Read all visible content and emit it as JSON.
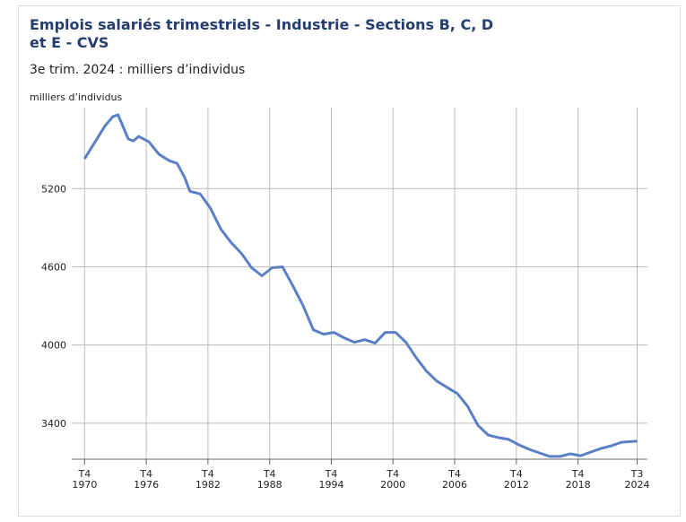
{
  "chart_data": {
    "type": "line",
    "title": "Emplois salariés trimestriels - Industrie - Sections B, C, D et E - CVS",
    "subtitle": "3e trim. 2024 : milliers d’individus",
    "y_label": "milliers d’individus",
    "x": [
      1970.75,
      1971.5,
      1972.75,
      1973.5,
      1974,
      1975,
      1975.5,
      1976,
      1977,
      1978,
      1979,
      1979.75,
      1980.5,
      1981,
      1982,
      1983,
      1984,
      1985,
      1986,
      1987,
      1988,
      1989,
      1990,
      1991,
      1992,
      1993,
      1994,
      1995,
      1996,
      1997,
      1998,
      1999,
      2000,
      2001,
      2002,
      2003,
      2004,
      2005,
      2006,
      2007,
      2008,
      2009,
      2010,
      2011,
      2012,
      2013,
      2014,
      2015,
      2016,
      2017,
      2018,
      2019,
      2020,
      2021,
      2022,
      2023,
      2024.5
    ],
    "series": [
      {
        "name": "Emplois",
        "color": "#5b7fc7",
        "values": [
          5428,
          5524,
          5683,
          5752,
          5766,
          5580,
          5566,
          5600,
          5559,
          5462,
          5414,
          5393,
          5283,
          5179,
          5159,
          5048,
          4890,
          4786,
          4703,
          4593,
          4531,
          4593,
          4600,
          4455,
          4303,
          4117,
          4083,
          4097,
          4055,
          4021,
          4041,
          4014,
          4097,
          4097,
          4021,
          3903,
          3800,
          3724,
          3676,
          3628,
          3531,
          3386,
          3310,
          3290,
          3276,
          3234,
          3200,
          3172,
          3145,
          3145,
          3165,
          3151,
          3179,
          3207,
          3227,
          3255,
          3262
        ]
      }
    ],
    "xlim": [
      1969.5,
      2025.5
    ],
    "ylim": [
      3124,
      5821
    ],
    "yticks": [
      3400,
      4000,
      4600,
      5200
    ],
    "xticks": [
      {
        "value": 1970.75,
        "label": "T4 1970"
      },
      {
        "value": 1976.75,
        "label": "T4 1976"
      },
      {
        "value": 1982.75,
        "label": "T4 1982"
      },
      {
        "value": 1988.75,
        "label": "T4 1988"
      },
      {
        "value": 1994.75,
        "label": "T4 1994"
      },
      {
        "value": 2000.75,
        "label": "T4 2000"
      },
      {
        "value": 2006.75,
        "label": "T4 2006"
      },
      {
        "value": 2012.75,
        "label": "T4 2012"
      },
      {
        "value": 2018.75,
        "label": "T4 2018"
      },
      {
        "value": 2024.5,
        "label": "T3 2024"
      }
    ],
    "grid": true
  }
}
